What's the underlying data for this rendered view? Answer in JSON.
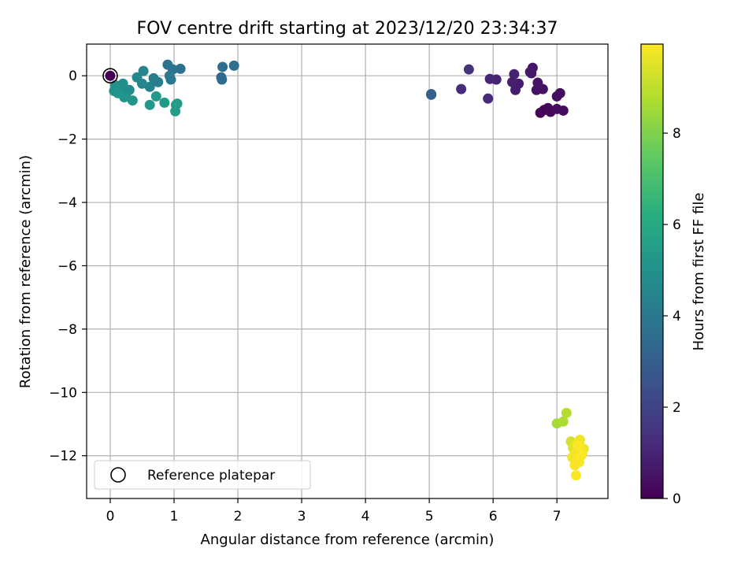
{
  "chart_data": {
    "type": "scatter",
    "title": "FOV centre drift starting at 2023/12/20 23:34:37",
    "xlabel": "Angular distance from reference (arcmin)",
    "ylabel": "Rotation from reference (arcmin)",
    "xlim": [
      -0.37,
      7.8
    ],
    "ylim": [
      -13.35,
      1.0
    ],
    "xticks": [
      0,
      1,
      2,
      3,
      4,
      5,
      6,
      7
    ],
    "yticks": [
      0,
      -2,
      -4,
      -6,
      -8,
      -10,
      -12
    ],
    "grid": true,
    "legend": {
      "label": "Reference platepar",
      "placement": "lower-left"
    },
    "reference_point": {
      "x": 0,
      "y": 0
    },
    "colorbar": {
      "label": "Hours from first FF file",
      "colormap": "viridis",
      "min": 0,
      "max": 9.95,
      "ticks": [
        0,
        2,
        4,
        6,
        8
      ]
    },
    "points": [
      {
        "x": 0.0,
        "y": 0.0,
        "hours": 0.0
      },
      {
        "x": 6.74,
        "y": -1.17,
        "hours": 0.05
      },
      {
        "x": 6.8,
        "y": -1.08,
        "hours": 0.1
      },
      {
        "x": 6.86,
        "y": -1.02,
        "hours": 0.15
      },
      {
        "x": 6.9,
        "y": -1.14,
        "hours": 0.2
      },
      {
        "x": 7.0,
        "y": -1.05,
        "hours": 0.25
      },
      {
        "x": 7.1,
        "y": -1.1,
        "hours": 0.3
      },
      {
        "x": 7.05,
        "y": -0.55,
        "hours": 0.35
      },
      {
        "x": 7.0,
        "y": -0.65,
        "hours": 0.4
      },
      {
        "x": 6.78,
        "y": -0.42,
        "hours": 0.45
      },
      {
        "x": 6.68,
        "y": -0.45,
        "hours": 0.5
      },
      {
        "x": 6.7,
        "y": -0.22,
        "hours": 0.55
      },
      {
        "x": 6.62,
        "y": 0.25,
        "hours": 0.6
      },
      {
        "x": 6.6,
        "y": 0.08,
        "hours": 0.65
      },
      {
        "x": 6.58,
        "y": 0.12,
        "hours": 0.7
      },
      {
        "x": 6.4,
        "y": -0.25,
        "hours": 0.75
      },
      {
        "x": 6.35,
        "y": -0.45,
        "hours": 0.8
      },
      {
        "x": 6.3,
        "y": -0.2,
        "hours": 0.85
      },
      {
        "x": 6.33,
        "y": 0.05,
        "hours": 0.9
      },
      {
        "x": 6.05,
        "y": -0.12,
        "hours": 1.0
      },
      {
        "x": 5.95,
        "y": -0.1,
        "hours": 1.05
      },
      {
        "x": 5.92,
        "y": -0.72,
        "hours": 1.15
      },
      {
        "x": 5.5,
        "y": -0.42,
        "hours": 1.25
      },
      {
        "x": 5.62,
        "y": 0.2,
        "hours": 1.45
      },
      {
        "x": 5.03,
        "y": -0.58,
        "hours": 2.8
      },
      {
        "x": 5.03,
        "y": -0.6,
        "hours": 3.0
      },
      {
        "x": 1.74,
        "y": -0.05,
        "hours": 3.3
      },
      {
        "x": 1.75,
        "y": -0.12,
        "hours": 3.45
      },
      {
        "x": 1.76,
        "y": 0.28,
        "hours": 3.55
      },
      {
        "x": 1.94,
        "y": 0.32,
        "hours": 3.6
      },
      {
        "x": 1.1,
        "y": 0.22,
        "hours": 3.7
      },
      {
        "x": 0.98,
        "y": 0.2,
        "hours": 3.75
      },
      {
        "x": 0.9,
        "y": 0.35,
        "hours": 3.8
      },
      {
        "x": 0.95,
        "y": -0.12,
        "hours": 3.95
      },
      {
        "x": 0.93,
        "y": 0.0,
        "hours": 4.05
      },
      {
        "x": 0.75,
        "y": -0.2,
        "hours": 4.15
      },
      {
        "x": 0.68,
        "y": -0.08,
        "hours": 4.25
      },
      {
        "x": 0.62,
        "y": -0.35,
        "hours": 4.35
      },
      {
        "x": 0.52,
        "y": 0.15,
        "hours": 4.45
      },
      {
        "x": 0.5,
        "y": -0.25,
        "hours": 4.55
      },
      {
        "x": 0.42,
        "y": -0.05,
        "hours": 4.65
      },
      {
        "x": 0.3,
        "y": -0.45,
        "hours": 4.75
      },
      {
        "x": 0.25,
        "y": -0.55,
        "hours": 4.85
      },
      {
        "x": 0.2,
        "y": -0.25,
        "hours": 4.9
      },
      {
        "x": 0.15,
        "y": -0.35,
        "hours": 4.95
      },
      {
        "x": 0.08,
        "y": -0.3,
        "hours": 5.0
      },
      {
        "x": 0.06,
        "y": -0.48,
        "hours": 5.05
      },
      {
        "x": 0.12,
        "y": -0.55,
        "hours": 5.1
      },
      {
        "x": 0.22,
        "y": -0.68,
        "hours": 5.15
      },
      {
        "x": 0.35,
        "y": -0.78,
        "hours": 5.2
      },
      {
        "x": 0.62,
        "y": -0.92,
        "hours": 5.25
      },
      {
        "x": 0.72,
        "y": -0.65,
        "hours": 5.3
      },
      {
        "x": 0.85,
        "y": -0.85,
        "hours": 5.35
      },
      {
        "x": 1.03,
        "y": -0.92,
        "hours": 5.4
      },
      {
        "x": 1.05,
        "y": -0.88,
        "hours": 5.45
      },
      {
        "x": 1.02,
        "y": -1.12,
        "hours": 5.5
      },
      {
        "x": 7.0,
        "y": -10.98,
        "hours": 8.6
      },
      {
        "x": 7.1,
        "y": -10.92,
        "hours": 8.7
      },
      {
        "x": 7.15,
        "y": -10.65,
        "hours": 8.8
      },
      {
        "x": 7.22,
        "y": -11.55,
        "hours": 9.3
      },
      {
        "x": 7.25,
        "y": -11.75,
        "hours": 9.45
      },
      {
        "x": 7.3,
        "y": -11.6,
        "hours": 9.55
      },
      {
        "x": 7.35,
        "y": -11.55,
        "hours": 9.6
      },
      {
        "x": 7.38,
        "y": -11.8,
        "hours": 9.65
      },
      {
        "x": 7.42,
        "y": -11.78,
        "hours": 9.7
      },
      {
        "x": 7.36,
        "y": -11.5,
        "hours": 9.72
      },
      {
        "x": 7.28,
        "y": -11.95,
        "hours": 9.75
      },
      {
        "x": 7.24,
        "y": -12.05,
        "hours": 9.78
      },
      {
        "x": 7.32,
        "y": -12.1,
        "hours": 9.8
      },
      {
        "x": 7.4,
        "y": -11.92,
        "hours": 9.82
      },
      {
        "x": 7.35,
        "y": -12.2,
        "hours": 9.85
      },
      {
        "x": 7.28,
        "y": -12.3,
        "hours": 9.88
      },
      {
        "x": 7.3,
        "y": -12.62,
        "hours": 9.9
      },
      {
        "x": 7.38,
        "y": -12.0,
        "hours": 9.92
      },
      {
        "x": 7.33,
        "y": -11.68,
        "hours": 9.95
      }
    ]
  }
}
